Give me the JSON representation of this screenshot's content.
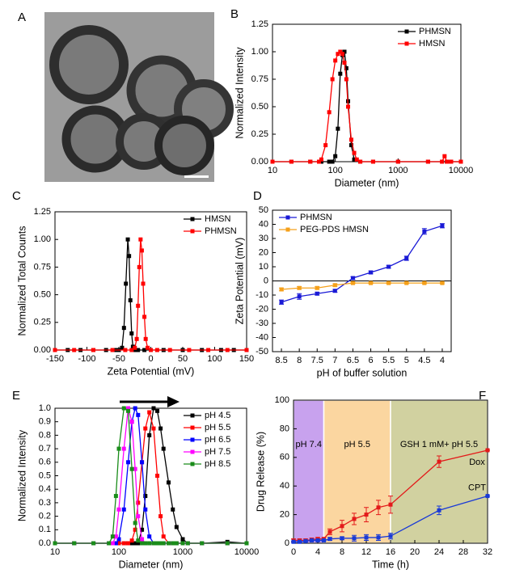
{
  "panel_a": {
    "label": "A"
  },
  "chart_data": [
    {
      "type": "line",
      "label": "B",
      "xlabel": "Diameter (nm)",
      "ylabel": "Normalized Intensity",
      "xlog": true,
      "xlim": [
        10,
        10000
      ],
      "xticks": [
        10,
        100,
        1000,
        10000
      ],
      "ylim": [
        0,
        1.25
      ],
      "yticks": [
        {
          "value": 0,
          "label": "0.00"
        },
        {
          "value": 0.25,
          "label": "0.25"
        },
        {
          "value": 0.5,
          "label": "0.50"
        },
        {
          "value": 0.75,
          "label": "0.75"
        },
        {
          "value": 1,
          "label": "1.00"
        },
        {
          "value": 1.25,
          "label": "1.25"
        }
      ],
      "legend": "upper right",
      "series": [
        {
          "name": "PHMSN",
          "color": "#000000",
          "x": [
            10,
            20,
            40,
            60,
            80,
            90,
            100,
            110,
            120,
            130,
            140,
            150,
            160,
            180,
            200,
            250,
            400,
            1000,
            3000,
            6000,
            10000
          ],
          "values": [
            0,
            0,
            0,
            0,
            0,
            0,
            0.05,
            0.3,
            0.8,
            0.97,
            1.0,
            0.85,
            0.55,
            0.15,
            0.02,
            0,
            0,
            0,
            0,
            0,
            0
          ]
        },
        {
          "name": "HMSN",
          "color": "#ff0000",
          "x": [
            10,
            20,
            40,
            55,
            60,
            70,
            80,
            90,
            100,
            110,
            120,
            130,
            140,
            150,
            160,
            180,
            200,
            220,
            250,
            400,
            1000,
            3000,
            5000,
            5500,
            6000,
            7000,
            10000
          ],
          "values": [
            0,
            0,
            0,
            0,
            0.02,
            0.15,
            0.45,
            0.75,
            0.92,
            0.98,
            1.0,
            0.98,
            0.9,
            0.75,
            0.5,
            0.2,
            0.08,
            0.02,
            0,
            0,
            0,
            0,
            0,
            0.05,
            0,
            0,
            0
          ]
        }
      ]
    },
    {
      "type": "line",
      "label": "C",
      "xlabel": "Zeta Potential (mV)",
      "ylabel": "Normalized Total Counts",
      "xlim": [
        -150,
        150
      ],
      "xticks": [
        -150,
        -100,
        -50,
        0,
        50,
        100,
        150
      ],
      "ylim": [
        0,
        1.25
      ],
      "yticks": [
        {
          "value": 0,
          "label": "0.00"
        },
        {
          "value": 0.25,
          "label": "0.25"
        },
        {
          "value": 0.5,
          "label": "0.50"
        },
        {
          "value": 0.75,
          "label": "0.75"
        },
        {
          "value": 1,
          "label": "1.00"
        },
        {
          "value": 1.25,
          "label": "1.25"
        }
      ],
      "legend": "upper right",
      "series": [
        {
          "name": "HMSN",
          "color": "#000000",
          "x": [
            -150,
            -130,
            -110,
            -90,
            -70,
            -55,
            -50,
            -45,
            -42,
            -39,
            -36,
            -34,
            -32,
            -30,
            -28,
            -25,
            -20,
            -10,
            0,
            20,
            50,
            80,
            110,
            130,
            150
          ],
          "values": [
            0,
            0,
            0,
            0,
            0,
            0,
            0,
            0.02,
            0.2,
            0.6,
            1.0,
            0.85,
            0.45,
            0.15,
            0.03,
            0,
            0,
            0,
            0,
            0,
            0,
            0,
            0,
            0,
            0
          ]
        },
        {
          "name": "PHMSN",
          "color": "#ff0000",
          "x": [
            -150,
            -120,
            -90,
            -60,
            -40,
            -30,
            -25,
            -22,
            -20,
            -18,
            -16,
            -14,
            -12,
            -10,
            -8,
            -5,
            0,
            10,
            30,
            60,
            90,
            120,
            150
          ],
          "values": [
            0,
            0,
            0,
            0,
            0,
            0,
            0.02,
            0.1,
            0.4,
            0.75,
            1.0,
            0.9,
            0.6,
            0.3,
            0.1,
            0.02,
            0,
            0,
            0,
            0,
            0,
            0,
            0
          ]
        }
      ]
    },
    {
      "type": "line",
      "label": "D",
      "xlabel": "pH of buffer solution",
      "ylabel": "Zeta Potential (mV)",
      "categories": [
        "8.5",
        "8",
        "7.5",
        "7",
        "6.5",
        "6",
        "5.5",
        "5",
        "4.5",
        "4"
      ],
      "ylim": [
        -50,
        50
      ],
      "yticks": [
        -50,
        -40,
        -30,
        -20,
        -10,
        0,
        10,
        20,
        30,
        40,
        50
      ],
      "hline": 0,
      "legend": "upper left",
      "series": [
        {
          "name": "PHMSN",
          "color": "#1a1ad6",
          "values": [
            -15,
            -11,
            -9,
            -7,
            2,
            6,
            10,
            16,
            35,
            39
          ],
          "errors": [
            1.5,
            2,
            1,
            1,
            1,
            1,
            1,
            1.5,
            2,
            1.5
          ]
        },
        {
          "name": "PEG-PDS HMSN",
          "color": "#f5a01a",
          "values": [
            -6,
            -5,
            -5,
            -3,
            -1.5,
            -1.5,
            -1.5,
            -1.5,
            -1.5,
            -1.5
          ],
          "errors": [
            1,
            1,
            1,
            1,
            0.5,
            0.5,
            0.5,
            0.5,
            0.5,
            0.5
          ]
        }
      ]
    },
    {
      "type": "line",
      "label": "E",
      "xlabel": "Diameter (nm)",
      "ylabel": "Normalized Intensity",
      "xlog": true,
      "xlim": [
        10,
        10000
      ],
      "xticks": [
        10,
        100,
        1000,
        10000
      ],
      "ylim": [
        0,
        1.0
      ],
      "yticks": [
        {
          "value": 0,
          "label": "0.0"
        },
        {
          "value": 0.1,
          "label": "0.1"
        },
        {
          "value": 0.2,
          "label": "0.2"
        },
        {
          "value": 0.3,
          "label": "0.3"
        },
        {
          "value": 0.4,
          "label": "0.4"
        },
        {
          "value": 0.5,
          "label": "0.5"
        },
        {
          "value": 0.6,
          "label": "0.6"
        },
        {
          "value": 0.7,
          "label": "0.7"
        },
        {
          "value": 0.8,
          "label": "0.8"
        },
        {
          "value": 0.9,
          "label": "0.9"
        },
        {
          "value": 1.0,
          "label": "1.0"
        }
      ],
      "legend": "upper right",
      "x": [
        10,
        20,
        40,
        70,
        80,
        90,
        100,
        120,
        140,
        160,
        180,
        200,
        230,
        260,
        300,
        350,
        400,
        450,
        500,
        600,
        700,
        800,
        1000,
        1200,
        2000,
        5000,
        10000
      ],
      "series": [
        {
          "name": "pH 4.5",
          "color": "#000000",
          "values": [
            0,
            0,
            0,
            0,
            0,
            0,
            0,
            0,
            0,
            0,
            0,
            0,
            0.1,
            0.35,
            0.8,
            1.0,
            0.98,
            0.85,
            0.7,
            0.45,
            0.25,
            0.12,
            0.03,
            0,
            0,
            0.01,
            0
          ]
        },
        {
          "name": "pH 5.5",
          "color": "#ff0000",
          "values": [
            0,
            0,
            0,
            0,
            0,
            0,
            0,
            0,
            0,
            0.02,
            0.1,
            0.3,
            0.6,
            0.85,
            0.97,
            0.85,
            0.5,
            0.2,
            0.05,
            0,
            0,
            0,
            0,
            0,
            0,
            0,
            0
          ]
        },
        {
          "name": "pH 6.5",
          "color": "#0000ff",
          "values": [
            0,
            0,
            0,
            0,
            0,
            0,
            0.03,
            0.25,
            0.6,
            0.9,
            1.0,
            0.95,
            0.6,
            0.25,
            0.05,
            0,
            0,
            0,
            0,
            0,
            0,
            0,
            0,
            0,
            0,
            0,
            0
          ]
        },
        {
          "name": "pH 7.5",
          "color": "#ff00ff",
          "values": [
            0,
            0,
            0,
            0,
            0,
            0.05,
            0.25,
            0.7,
            1.0,
            0.9,
            0.55,
            0.2,
            0.03,
            0,
            0,
            0,
            0,
            0,
            0,
            0,
            0,
            0,
            0,
            0,
            0,
            0,
            0
          ]
        },
        {
          "name": "pH 8.5",
          "color": "#1a8c1a",
          "values": [
            0,
            0,
            0,
            0,
            0.05,
            0.35,
            0.7,
            1.0,
            0.98,
            0.55,
            0.15,
            0.02,
            0,
            0,
            0,
            0,
            0,
            0,
            0,
            0,
            0,
            0,
            0,
            0,
            0,
            0,
            0
          ]
        }
      ]
    },
    {
      "type": "line",
      "label": "F",
      "xlabel": "Time (h)",
      "ylabel": "Drug Release (%)",
      "xlim": [
        0,
        32
      ],
      "xticks": [
        0,
        4,
        8,
        12,
        16,
        20,
        24,
        28,
        32
      ],
      "ylim": [
        0,
        100
      ],
      "yticks": [
        0,
        20,
        40,
        60,
        80,
        100
      ],
      "legend": "inline",
      "regions": [
        {
          "label": "pH 7.4",
          "color": "#c8a2ee",
          "x": [
            0,
            5
          ]
        },
        {
          "label": "pH 5.5",
          "color": "#fbd6a0",
          "x": [
            5,
            16
          ]
        },
        {
          "label": "GSH 1 mM+ pH 5.5",
          "color": "#d1d1a0",
          "x": [
            16,
            32
          ]
        }
      ],
      "x": [
        0,
        1,
        2,
        3,
        4,
        5,
        6,
        8,
        10,
        12,
        14,
        16,
        24,
        32
      ],
      "series": [
        {
          "name": "Dox",
          "color": "#e31a1a",
          "values": [
            2,
            2,
            2,
            2.5,
            3,
            3,
            8,
            12,
            17,
            20,
            25,
            27,
            57,
            65
          ],
          "errors": [
            1,
            1,
            1,
            1,
            1,
            1,
            2,
            4,
            4,
            5,
            5,
            6,
            4,
            0
          ]
        },
        {
          "name": "CPT",
          "color": "#1a3ad6",
          "values": [
            1,
            1,
            1.5,
            2,
            2,
            2,
            3,
            3.5,
            3.5,
            4,
            4,
            5,
            23,
            33
          ],
          "errors": [
            0.5,
            0.5,
            0.5,
            0.5,
            0.5,
            0.5,
            1,
            1,
            2,
            2,
            2,
            2,
            3,
            0
          ]
        }
      ]
    }
  ]
}
